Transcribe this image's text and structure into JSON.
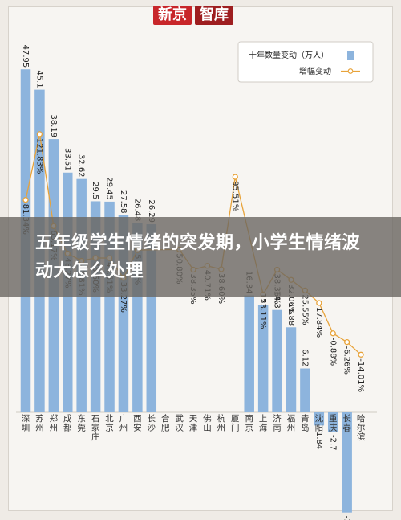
{
  "logo": {
    "part1": "新京",
    "part2": "智库"
  },
  "overlay_title": "五年级学生情绪的突发期，小学生情绪波动大怎么处理",
  "chart_data": {
    "type": "bar",
    "categories": [
      "深圳",
      "苏州",
      "郑州",
      "成都",
      "东莞",
      "石家庄",
      "北京",
      "广州",
      "西安",
      "长沙",
      "合肥",
      "武汉",
      "天津",
      "佛山",
      "杭州",
      "厦门",
      "南京",
      "上海",
      "济南",
      "福州",
      "青岛",
      "沈阳",
      "重庆",
      "长春",
      "哈尔滨"
    ],
    "series": [
      {
        "name": "十年数量变动（万人）",
        "type": "bar",
        "color": "#8db4dd",
        "values": [
          47.95,
          45.1,
          38.19,
          33.51,
          32.62,
          29.5,
          29.45,
          27.58,
          26.48,
          26.29,
          null,
          null,
          null,
          null,
          null,
          null,
          16.34,
          15,
          14.3,
          11.88,
          6.12,
          -1.84,
          -2.7,
          -14.01,
          null
        ],
        "labels": [
          "47.95",
          "45.1",
          "38.19",
          "33.51",
          "32.62",
          "29.5",
          "29.45",
          "27.58",
          "26.48",
          "26.29",
          "",
          "",
          "",
          "",
          "",
          "",
          "16.34",
          "15",
          "14.3",
          "11.88",
          "6.12",
          "-1.84",
          "-2.7",
          "-14.01",
          ""
        ]
      },
      {
        "name": "增幅变动",
        "type": "line",
        "color": "#e8a33a",
        "values": [
          81.34,
          121.83,
          65.17,
          48.27,
          43.81,
          45.6,
          45.51,
          33.27,
          50.44,
          null,
          null,
          50.8,
          38.35,
          40.71,
          38.6,
          95.51,
          null,
          23.11,
          38.36,
          32.06,
          25.55,
          17.84,
          -0.88,
          -6.26,
          -14.01
        ],
        "labels": [
          "81.34%",
          "121.83%",
          "65.17%",
          "48.27%",
          "43.81%",
          "45.60%",
          "45.51%",
          "33.27%",
          "50.44%",
          "",
          "",
          "50.80%",
          "38.35%",
          "40.71%",
          "38.60%",
          "95.51%",
          "",
          "23.11%",
          "38.36%",
          "32.06%",
          "25.55%",
          "17.84%",
          "-0.88%",
          "-6.26%",
          "-14.01%"
        ]
      }
    ],
    "legend": {
      "position": "top-right"
    },
    "grid": false
  }
}
